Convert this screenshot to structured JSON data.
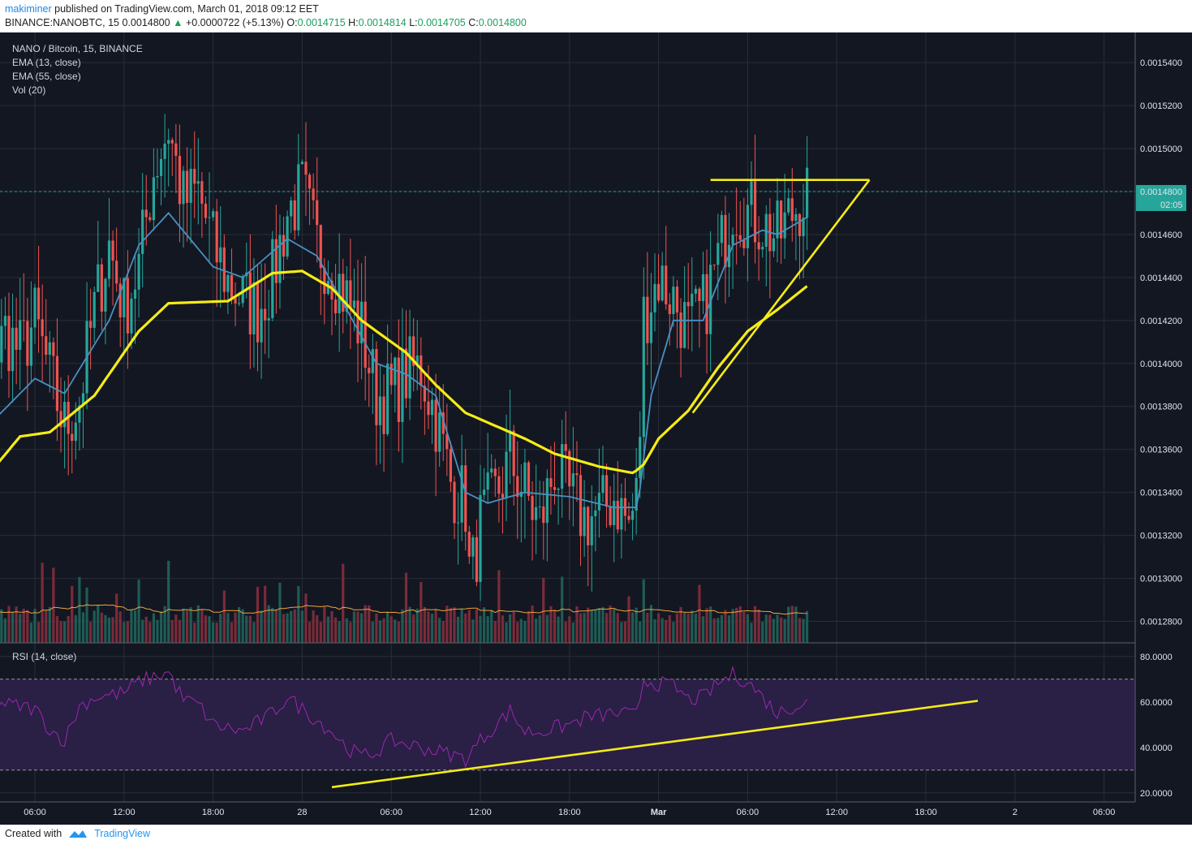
{
  "header": {
    "user": "makiminer",
    "published_text": "published on TradingView.com, March 01, 2018 09:12 EET",
    "symbol": "BINANCE:NANOBTC, 15",
    "last": "0.0014800",
    "change": "+0.0000722 (+5.13%)",
    "open_label": "O:",
    "open": "0.0014715",
    "high_label": "H:",
    "high": "0.0014814",
    "low_label": "L:",
    "low": "0.0014705",
    "close_label": "C:",
    "close": "0.0014800"
  },
  "legend": {
    "title": "NANO / Bitcoin, 15, BINANCE",
    "ema13": "EMA (13, close)",
    "ema55": "EMA (55, close)",
    "vol": "Vol (20)",
    "rsi": "RSI (14, close)"
  },
  "price_badge": {
    "value": "0.0014800",
    "countdown": "02:05"
  },
  "footer": {
    "created_with": "Created with",
    "brand": "TradingView"
  },
  "colors": {
    "background": "#131722",
    "grid": "#2a2e39",
    "bull": "#26a69a",
    "bear": "#ef5350",
    "ema13": "#4a90c2",
    "ema55": "#f5ec16",
    "rsi": "#9c27b0",
    "rsi_band": "#2a1f45",
    "trendline": "#f5ec16",
    "last_price": "#26a69a"
  },
  "chart_data": [
    {
      "type": "candlestick",
      "title": "NANO / Bitcoin, 15, BINANCE",
      "y_ticks": [
        "0.0015400",
        "0.0015200",
        "0.0015000",
        "0.0014800",
        "0.0014600",
        "0.0014400",
        "0.0014200",
        "0.0014000",
        "0.0013800",
        "0.0013600",
        "0.0013400",
        "0.0013200",
        "0.0013000",
        "0.0012800"
      ],
      "ylim": [
        0.00127,
        0.001554
      ],
      "x_ticks": [
        "06:00",
        "12:00",
        "18:00",
        "28",
        "06:00",
        "12:00",
        "18:00",
        "Mar",
        "06:00",
        "12:00",
        "18:00",
        "2",
        "06:00"
      ],
      "x_tick_hours": [
        6,
        12,
        18,
        24,
        30,
        36,
        42,
        48,
        54,
        60,
        66,
        72,
        78
      ],
      "close_anchors": [
        [
          0,
          0.001346
        ],
        [
          1,
          0.001352
        ],
        [
          2,
          0.001362
        ],
        [
          3,
          0.001395
        ],
        [
          4,
          0.001415
        ],
        [
          5,
          0.001405
        ],
        [
          6,
          0.00142
        ],
        [
          7,
          0.001395
        ],
        [
          8,
          0.00137
        ],
        [
          9,
          0.001383
        ],
        [
          10,
          0.001425
        ],
        [
          11,
          0.001455
        ],
        [
          12,
          0.001425
        ],
        [
          13,
          0.001445
        ],
        [
          14,
          0.00149
        ],
        [
          15,
          0.00151
        ],
        [
          16,
          0.001475
        ],
        [
          17,
          0.00148
        ],
        [
          18,
          0.001455
        ],
        [
          19,
          0.001438
        ],
        [
          20,
          0.00143
        ],
        [
          21,
          0.001425
        ],
        [
          22,
          0.00144
        ],
        [
          23,
          0.00147
        ],
        [
          24,
          0.00148
        ],
        [
          25,
          0.001455
        ],
        [
          26,
          0.001445
        ],
        [
          27,
          0.00143
        ],
        [
          28,
          0.001415
        ],
        [
          29,
          0.001385
        ],
        [
          30,
          0.001385
        ],
        [
          31,
          0.001395
        ],
        [
          32,
          0.001398
        ],
        [
          33,
          0.001375
        ],
        [
          34,
          0.001345
        ],
        [
          35,
          0.001335
        ],
        [
          35.3,
          0.001297
        ],
        [
          36,
          0.001325
        ],
        [
          37,
          0.001338
        ],
        [
          38,
          0.001355
        ],
        [
          39,
          0.00134
        ],
        [
          40,
          0.001325
        ],
        [
          41,
          0.001352
        ],
        [
          42,
          0.001338
        ],
        [
          43,
          0.001328
        ],
        [
          44,
          0.00133
        ],
        [
          45,
          0.001338
        ],
        [
          46,
          0.001325
        ],
        [
          46.6,
          0.00134
        ],
        [
          47,
          0.001422
        ],
        [
          48,
          0.00144
        ],
        [
          49,
          0.00143
        ],
        [
          50,
          0.001415
        ],
        [
          51,
          0.001425
        ],
        [
          52,
          0.001448
        ],
        [
          53,
          0.001475
        ],
        [
          54,
          0.00147
        ],
        [
          55,
          0.001465
        ],
        [
          56,
          0.001458
        ],
        [
          57,
          0.00147
        ],
        [
          58,
          0.00148
        ]
      ],
      "ema13_anchors": [
        [
          0,
          0.00134
        ],
        [
          3,
          0.001372
        ],
        [
          6,
          0.001393
        ],
        [
          8,
          0.001386
        ],
        [
          11,
          0.00142
        ],
        [
          13,
          0.001455
        ],
        [
          15,
          0.00147
        ],
        [
          18,
          0.001445
        ],
        [
          20,
          0.00144
        ],
        [
          23,
          0.001458
        ],
        [
          25,
          0.00145
        ],
        [
          27,
          0.001425
        ],
        [
          29,
          0.0014
        ],
        [
          31,
          0.001395
        ],
        [
          33,
          0.001385
        ],
        [
          35,
          0.00134
        ],
        [
          36.5,
          0.001335
        ],
        [
          39,
          0.00134
        ],
        [
          42,
          0.001338
        ],
        [
          45,
          0.001333
        ],
        [
          46.6,
          0.001333
        ],
        [
          47.5,
          0.001385
        ],
        [
          49,
          0.00142
        ],
        [
          51,
          0.00142
        ],
        [
          53,
          0.001455
        ],
        [
          55,
          0.001462
        ],
        [
          56,
          0.00146
        ],
        [
          58,
          0.001468
        ]
      ],
      "ema55_anchors": [
        [
          0,
          0.001335
        ],
        [
          2,
          0.001341
        ],
        [
          5,
          0.001366
        ],
        [
          7,
          0.001368
        ],
        [
          10,
          0.001385
        ],
        [
          13,
          0.001415
        ],
        [
          15,
          0.001428
        ],
        [
          19,
          0.001429
        ],
        [
          22,
          0.001442
        ],
        [
          24,
          0.001443
        ],
        [
          26,
          0.001435
        ],
        [
          28,
          0.00142
        ],
        [
          31,
          0.001405
        ],
        [
          33,
          0.00139
        ],
        [
          35,
          0.001377
        ],
        [
          37,
          0.001371
        ],
        [
          39,
          0.001365
        ],
        [
          41,
          0.001358
        ],
        [
          44,
          0.001352
        ],
        [
          46.3,
          0.001349
        ],
        [
          47,
          0.001353
        ],
        [
          48,
          0.001365
        ],
        [
          50,
          0.001378
        ],
        [
          52,
          0.001398
        ],
        [
          54,
          0.001415
        ],
        [
          56,
          0.001425
        ],
        [
          58,
          0.001436
        ]
      ],
      "volume": {
        "label": "Vol (20)",
        "typical_ratio_of_pane": 0.15,
        "spikes": [
          [
            15,
            0.37
          ],
          [
            9.5,
            0.27
          ],
          [
            18.8,
            0.24
          ],
          [
            47,
            0.28
          ],
          [
            52.5,
            0.15
          ],
          [
            42.3,
            0.1
          ]
        ]
      },
      "annotations": [
        {
          "type": "horizontal_resistance",
          "from_hour": 51.5,
          "to_hour": 62.2,
          "price": 0.0014854
        },
        {
          "type": "ascending_trendline",
          "from": [
            50.3,
            0.001377
          ],
          "to": [
            62.2,
            0.0014854
          ]
        },
        {
          "type": "last_price_line",
          "price": 0.00148
        }
      ]
    },
    {
      "type": "line",
      "title": "RSI (14, close)",
      "y_ticks": [
        "80.0000",
        "60.0000",
        "40.0000",
        "20.0000"
      ],
      "ylim": [
        16,
        86
      ],
      "bands": [
        70,
        30
      ],
      "rsi_anchors": [
        [
          0,
          45
        ],
        [
          2,
          52
        ],
        [
          3,
          60
        ],
        [
          5,
          58
        ],
        [
          6,
          57
        ],
        [
          7,
          48
        ],
        [
          8,
          43
        ],
        [
          9,
          58
        ],
        [
          10,
          62
        ],
        [
          12,
          64
        ],
        [
          13,
          69
        ],
        [
          14,
          71
        ],
        [
          15,
          73
        ],
        [
          16,
          61
        ],
        [
          17,
          59
        ],
        [
          18,
          50
        ],
        [
          20,
          47
        ],
        [
          22,
          55
        ],
        [
          23,
          62
        ],
        [
          24,
          57
        ],
        [
          26,
          47
        ],
        [
          27,
          40
        ],
        [
          28,
          36
        ],
        [
          29,
          38
        ],
        [
          30,
          43
        ],
        [
          32,
          40
        ],
        [
          34,
          37
        ],
        [
          35,
          35
        ],
        [
          36,
          43
        ],
        [
          38,
          56
        ],
        [
          39,
          47
        ],
        [
          40,
          47
        ],
        [
          42,
          50
        ],
        [
          43,
          53
        ],
        [
          45,
          55
        ],
        [
          46.5,
          54
        ],
        [
          47,
          70
        ],
        [
          48,
          68
        ],
        [
          49,
          67
        ],
        [
          50,
          61
        ],
        [
          51,
          62
        ],
        [
          52,
          68
        ],
        [
          53,
          72
        ],
        [
          54,
          69
        ],
        [
          55,
          62
        ],
        [
          56,
          55
        ],
        [
          57,
          58
        ],
        [
          58,
          60
        ]
      ],
      "annotations": [
        {
          "type": "trendline",
          "from": [
            26,
            22.5
          ],
          "to": [
            69.5,
            60.5
          ]
        }
      ]
    }
  ]
}
